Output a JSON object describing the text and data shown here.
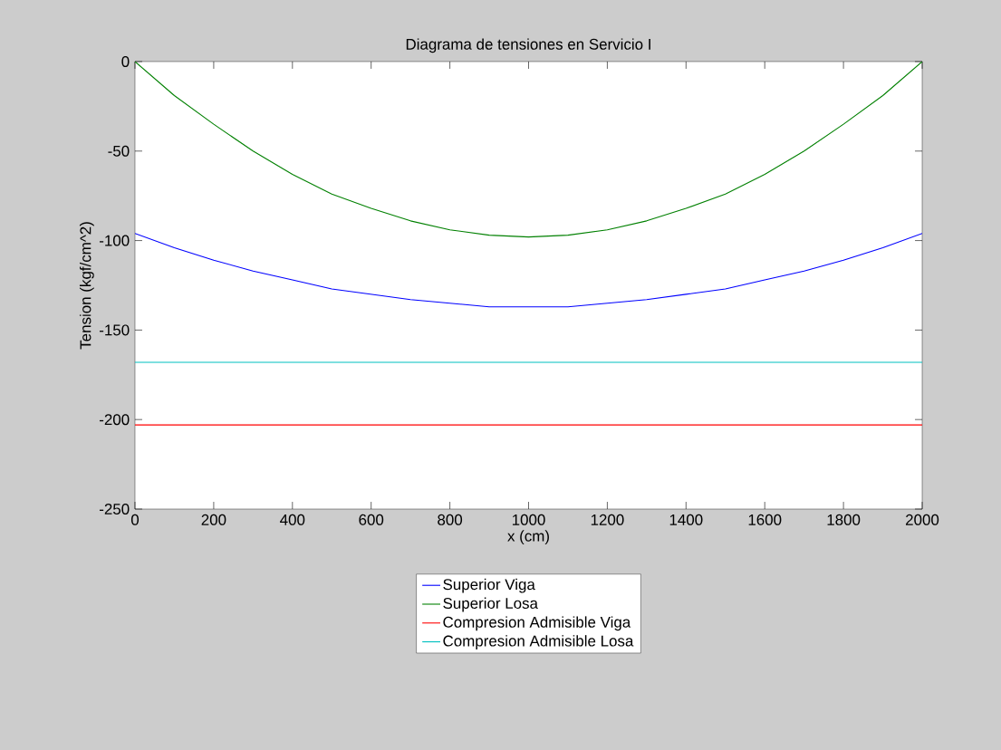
{
  "chart_data": {
    "type": "line",
    "title": "Diagrama de tensiones en Servicio I",
    "xlabel": "x (cm)",
    "ylabel": "Tension (kgf/cm^2)",
    "xlim": [
      0,
      2000
    ],
    "ylim": [
      -250,
      0
    ],
    "xticks": [
      0,
      200,
      400,
      600,
      800,
      1000,
      1200,
      1400,
      1600,
      1800,
      2000
    ],
    "yticks": [
      -250,
      -200,
      -150,
      -100,
      -50,
      0
    ],
    "grid": false,
    "legend": "bottom",
    "x": [
      0,
      100,
      200,
      300,
      400,
      500,
      600,
      700,
      800,
      900,
      1000,
      1100,
      1200,
      1300,
      1400,
      1500,
      1600,
      1700,
      1800,
      1900,
      2000
    ],
    "series": [
      {
        "name": "Superior Viga",
        "color": "#0000ff",
        "values": [
          -96,
          -104,
          -111,
          -117,
          -122,
          -127,
          -130,
          -133,
          -135,
          -137,
          -137,
          -137,
          -135,
          -133,
          -130,
          -127,
          -122,
          -117,
          -111,
          -104,
          -96
        ]
      },
      {
        "name": "Superior Losa",
        "color": "#008000",
        "values": [
          0,
          -19,
          -35,
          -50,
          -63,
          -74,
          -82,
          -89,
          -94,
          -97,
          -98,
          -97,
          -94,
          -89,
          -82,
          -74,
          -63,
          -50,
          -35,
          -19,
          0
        ]
      },
      {
        "name": "Compresion Admisible Viga",
        "color": "#ff0000",
        "values": [
          -203,
          -203,
          -203,
          -203,
          -203,
          -203,
          -203,
          -203,
          -203,
          -203,
          -203,
          -203,
          -203,
          -203,
          -203,
          -203,
          -203,
          -203,
          -203,
          -203,
          -203
        ]
      },
      {
        "name": "Compresion Admisible Losa",
        "color": "#00bfbf",
        "values": [
          -168,
          -168,
          -168,
          -168,
          -168,
          -168,
          -168,
          -168,
          -168,
          -168,
          -168,
          -168,
          -168,
          -168,
          -168,
          -168,
          -168,
          -168,
          -168,
          -168,
          -168
        ]
      }
    ]
  }
}
